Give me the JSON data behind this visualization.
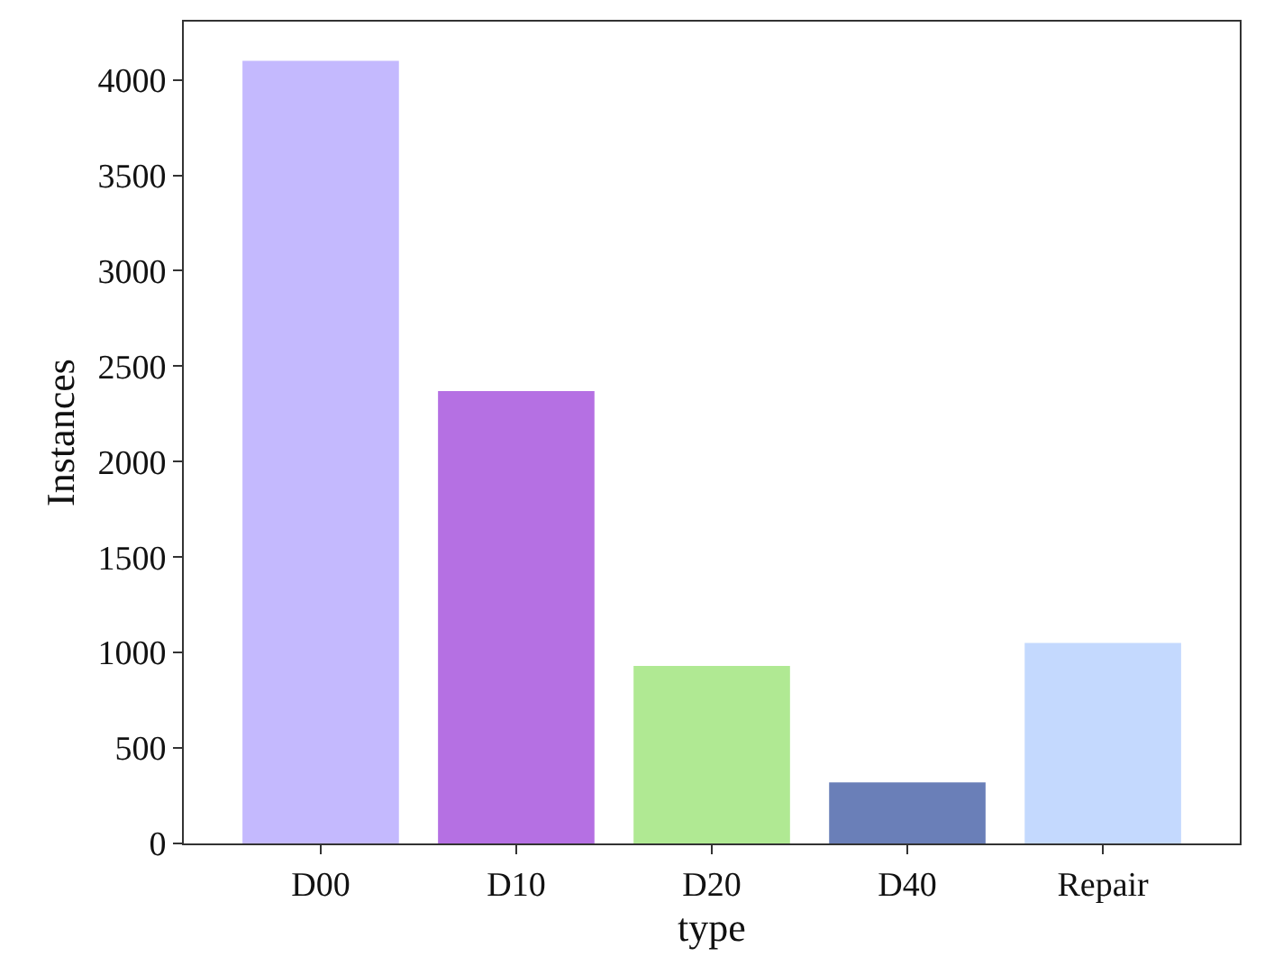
{
  "chart_data": {
    "type": "bar",
    "xlabel": "type",
    "ylabel": "Instances",
    "categories": [
      "D00",
      "D10",
      "D20",
      "D40",
      "Repair"
    ],
    "values": [
      4100,
      2370,
      930,
      320,
      1050
    ],
    "colors": [
      "#c4b9fe",
      "#b570e3",
      "#b0e993",
      "#6a7fb8",
      "#c4d9fe"
    ],
    "ylim": [
      0,
      4305
    ],
    "yticks": [
      0,
      500,
      1000,
      1500,
      2000,
      2500,
      3000,
      3500,
      4000
    ]
  }
}
